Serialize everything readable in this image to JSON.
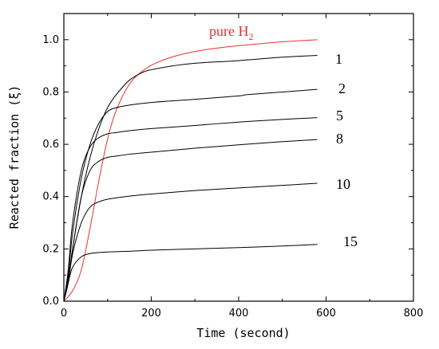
{
  "chart_data": {
    "type": "line",
    "title": "",
    "xlabel": "Time (second)",
    "ylabel": "Reacted fraction (ξ)",
    "xlim": [
      0,
      800
    ],
    "ylim": [
      0,
      1.1
    ],
    "xticks": [
      0,
      200,
      400,
      600,
      800
    ],
    "yticks": [
      0.0,
      0.2,
      0.4,
      0.6,
      0.8,
      1.0
    ],
    "xtick_labels": [
      "0",
      "200",
      "400",
      "600",
      "800"
    ],
    "ytick_labels": [
      "0.0",
      "0.2",
      "0.4",
      "0.6",
      "0.8",
      "1.0"
    ],
    "grid": false,
    "legend": "none",
    "colors": {
      "pure": "#e8302f",
      "other": "#000000"
    },
    "series": [
      {
        "name": "pure H2",
        "label_main": "pure H",
        "label_sub": "2",
        "color": "#e8302f",
        "x": [
          0,
          20,
          40,
          60,
          80,
          100,
          120,
          150,
          180,
          210,
          250,
          300,
          350,
          400,
          450,
          500,
          550,
          580
        ],
        "y": [
          0,
          0.04,
          0.12,
          0.28,
          0.46,
          0.62,
          0.73,
          0.83,
          0.88,
          0.91,
          0.935,
          0.955,
          0.968,
          0.977,
          0.985,
          0.992,
          0.997,
          1.0
        ]
      },
      {
        "name": "1",
        "color": "#000000",
        "x": [
          0,
          10,
          20,
          40,
          60,
          80,
          100,
          120,
          150,
          180,
          200,
          250,
          300,
          400,
          500,
          580
        ],
        "y": [
          0,
          0.08,
          0.2,
          0.4,
          0.55,
          0.66,
          0.74,
          0.79,
          0.845,
          0.875,
          0.885,
          0.9,
          0.91,
          0.92,
          0.933,
          0.94
        ]
      },
      {
        "name": "2",
        "color": "#000000",
        "x": [
          0,
          10,
          20,
          40,
          60,
          80,
          100,
          120,
          150,
          200,
          300,
          400,
          420,
          500,
          580
        ],
        "y": [
          0,
          0.1,
          0.26,
          0.47,
          0.6,
          0.68,
          0.725,
          0.74,
          0.75,
          0.76,
          0.772,
          0.785,
          0.79,
          0.8,
          0.81
        ]
      },
      {
        "name": "5",
        "color": "#000000",
        "x": [
          0,
          10,
          20,
          40,
          60,
          80,
          100,
          120,
          150,
          200,
          300,
          400,
          500,
          580
        ],
        "y": [
          0,
          0.12,
          0.3,
          0.5,
          0.59,
          0.625,
          0.64,
          0.645,
          0.652,
          0.66,
          0.672,
          0.685,
          0.695,
          0.702
        ]
      },
      {
        "name": "8",
        "color": "#000000",
        "x": [
          0,
          10,
          20,
          40,
          60,
          80,
          100,
          120,
          150,
          200,
          300,
          400,
          500,
          580
        ],
        "y": [
          0,
          0.08,
          0.2,
          0.4,
          0.5,
          0.535,
          0.55,
          0.555,
          0.562,
          0.57,
          0.585,
          0.598,
          0.61,
          0.618
        ]
      },
      {
        "name": "10",
        "color": "#000000",
        "x": [
          0,
          10,
          20,
          40,
          60,
          80,
          100,
          120,
          150,
          200,
          300,
          400,
          500,
          580
        ],
        "y": [
          0,
          0.07,
          0.18,
          0.3,
          0.36,
          0.38,
          0.39,
          0.395,
          0.402,
          0.41,
          0.423,
          0.433,
          0.443,
          0.451
        ]
      },
      {
        "name": "15",
        "color": "#000000",
        "x": [
          0,
          10,
          20,
          40,
          60,
          80,
          100,
          150,
          200,
          300,
          400,
          500,
          580
        ],
        "y": [
          0,
          0.07,
          0.13,
          0.17,
          0.182,
          0.186,
          0.188,
          0.191,
          0.195,
          0.2,
          0.205,
          0.211,
          0.217
        ]
      }
    ]
  }
}
